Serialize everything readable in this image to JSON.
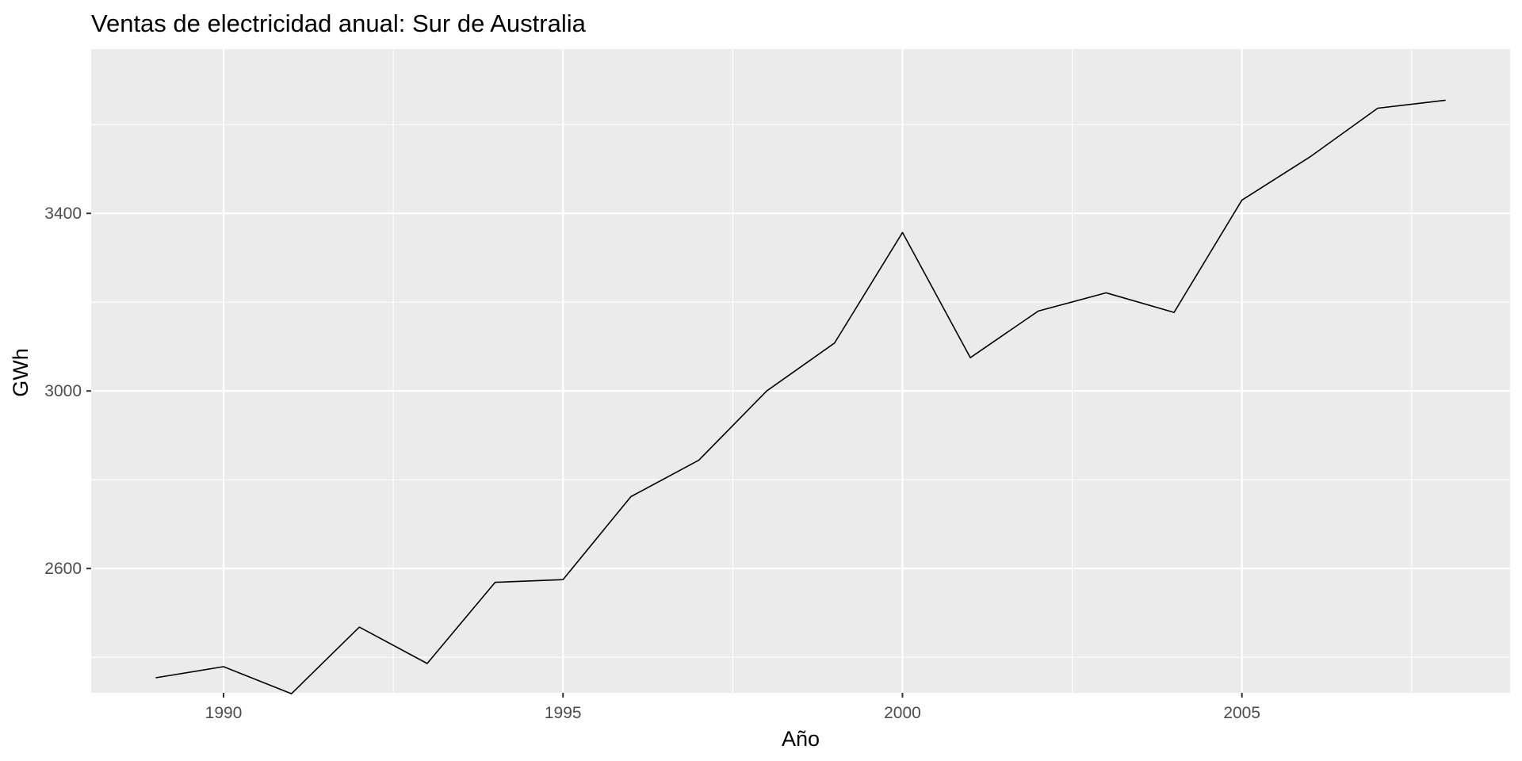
{
  "chart_data": {
    "type": "line",
    "title": "Ventas de electricidad anual: Sur de Australia",
    "xlabel": "Año",
    "ylabel": "GWh",
    "xlim": [
      1988.05,
      2008.95
    ],
    "ylim": [
      2320,
      3770
    ],
    "x_ticks": [
      1990,
      1995,
      2000,
      2005
    ],
    "y_ticks": [
      2600,
      3000,
      3400
    ],
    "grid": true,
    "legend": "none",
    "colors": {
      "panel_background": "#ebebeb",
      "grid_line": "#ffffff",
      "series_line": "#000000",
      "tick_text": "#4d4d4d"
    },
    "series": [
      {
        "x": [
          1989,
          1990,
          1991,
          1992,
          1993,
          1994,
          1995,
          1996,
          1997,
          1998,
          1999,
          2000,
          2001,
          2002,
          2003,
          2004,
          2005,
          2006,
          2007,
          2008
        ],
        "values": [
          2354,
          2379,
          2318,
          2468,
          2386,
          2569,
          2575,
          2762,
          2844,
          3000,
          3108,
          3357,
          3075,
          3180,
          3221,
          3177,
          3430,
          3527,
          3637,
          3655
        ]
      }
    ]
  }
}
